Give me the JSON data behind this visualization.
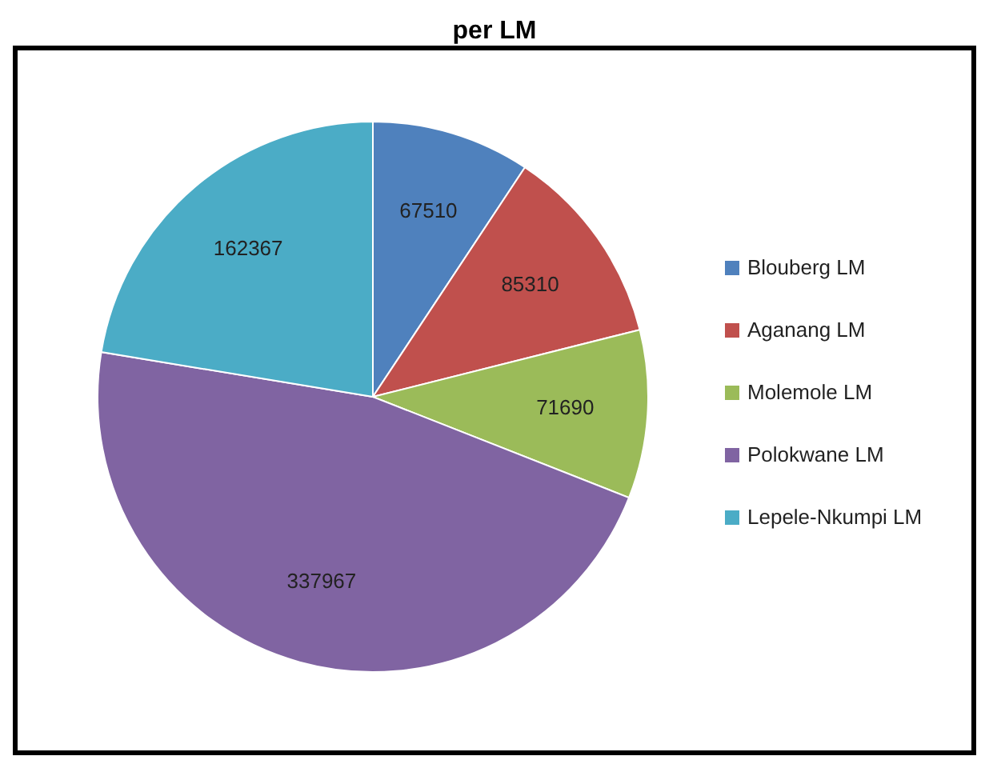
{
  "chart_data": {
    "type": "pie",
    "title": "per LM",
    "categories": [
      "Blouberg LM",
      "Aganang LM",
      "Molemole LM",
      "Polokwane LM",
      "Lepele-Nkumpi LM"
    ],
    "values": [
      67510,
      85310,
      71690,
      337967,
      162367
    ],
    "colors": [
      "#4f81bd",
      "#c0504d",
      "#9bbb59",
      "#8064a2",
      "#4bacc6"
    ],
    "data_labels": true,
    "legend": "right"
  }
}
